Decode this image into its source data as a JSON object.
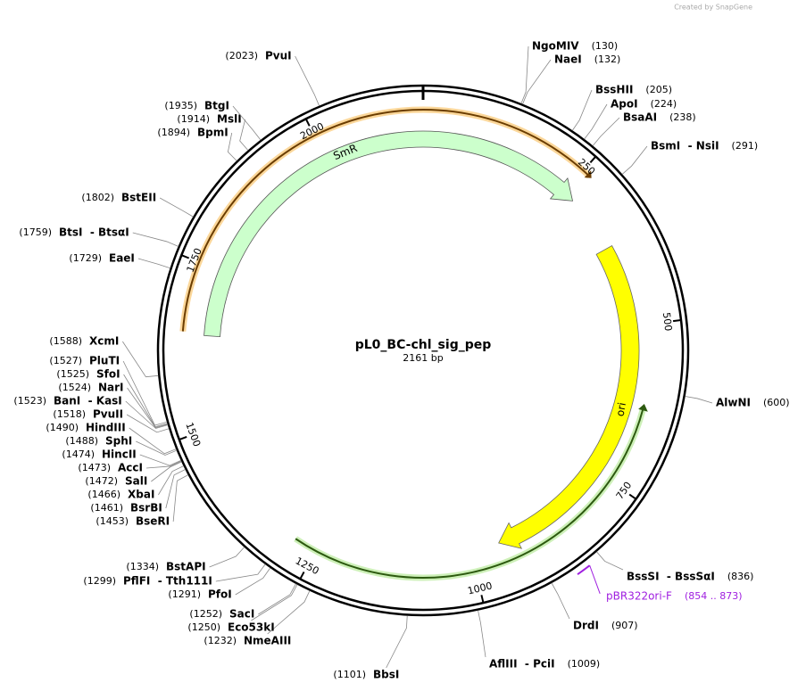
{
  "credit": "Created by SnapGene",
  "title": "pL0_BC-chl_sig_pep",
  "length": {
    "value": 2161,
    "label": "2161 bp"
  },
  "ticks": [
    250,
    500,
    750,
    1000,
    1250,
    1500,
    1750,
    2000
  ],
  "features": [
    {
      "name": "SmR"
    },
    {
      "name": "ori"
    }
  ],
  "primers": [
    {
      "name": "pBR322ori-F",
      "range": {
        "start": 854,
        "end": 873,
        "label": "(854 .. 873)"
      }
    }
  ],
  "enzymes": [
    {
      "name": "NgoMIV",
      "position": {
        "value": 130,
        "label": "(130)"
      }
    },
    {
      "name": "NaeI",
      "position": {
        "value": 132,
        "label": "(132)"
      }
    },
    {
      "name": "BssHII",
      "position": {
        "value": 205,
        "label": "(205)"
      }
    },
    {
      "name": "ApoI",
      "position": {
        "value": 224,
        "label": "(224)"
      }
    },
    {
      "name": "BsaAI",
      "position": {
        "value": 238,
        "label": "(238)"
      }
    },
    {
      "name": "BsmI  - NsiI",
      "position": {
        "value": 291,
        "label": "(291)"
      }
    },
    {
      "name": "AlwNI",
      "position": {
        "value": 600,
        "label": "(600)"
      }
    },
    {
      "name": "BssSI  - BssSαI",
      "position": {
        "value": 836,
        "label": "(836)"
      }
    },
    {
      "name": "DrdI",
      "position": {
        "value": 907,
        "label": "(907)"
      }
    },
    {
      "name": "AflIII  - PciI",
      "position": {
        "value": 1009,
        "label": "(1009)"
      }
    },
    {
      "name": "BbsI",
      "position": {
        "value": 1101,
        "label": "(1101)"
      }
    },
    {
      "name": "NmeAIII",
      "position": {
        "value": 1232,
        "label": "(1232)"
      }
    },
    {
      "name": "Eco53kI",
      "position": {
        "value": 1250,
        "label": "(1250)"
      }
    },
    {
      "name": "SacI",
      "position": {
        "value": 1252,
        "label": "(1252)"
      }
    },
    {
      "name": "PfoI",
      "position": {
        "value": 1291,
        "label": "(1291)"
      }
    },
    {
      "name": "PflFI  - Tth111I",
      "position": {
        "value": 1299,
        "label": "(1299)"
      }
    },
    {
      "name": "BstAPI",
      "position": {
        "value": 1334,
        "label": "(1334)"
      }
    },
    {
      "name": "BseRI",
      "position": {
        "value": 1453,
        "label": "(1453)"
      }
    },
    {
      "name": "BsrBI",
      "position": {
        "value": 1461,
        "label": "(1461)"
      }
    },
    {
      "name": "XbaI",
      "position": {
        "value": 1466,
        "label": "(1466)"
      }
    },
    {
      "name": "SalI",
      "position": {
        "value": 1472,
        "label": "(1472)"
      }
    },
    {
      "name": "AccI",
      "position": {
        "value": 1473,
        "label": "(1473)"
      }
    },
    {
      "name": "HincII",
      "position": {
        "value": 1474,
        "label": "(1474)"
      }
    },
    {
      "name": "SphI",
      "position": {
        "value": 1488,
        "label": "(1488)"
      }
    },
    {
      "name": "HindIII",
      "position": {
        "value": 1490,
        "label": "(1490)"
      }
    },
    {
      "name": "PvuII",
      "position": {
        "value": 1518,
        "label": "(1518)"
      }
    },
    {
      "name": "BanI  - KasI",
      "position": {
        "value": 1523,
        "label": "(1523)"
      }
    },
    {
      "name": "NarI",
      "position": {
        "value": 1524,
        "label": "(1524)"
      }
    },
    {
      "name": "SfoI",
      "position": {
        "value": 1525,
        "label": "(1525)"
      }
    },
    {
      "name": "PluTI",
      "position": {
        "value": 1527,
        "label": "(1527)"
      }
    },
    {
      "name": "XcmI",
      "position": {
        "value": 1588,
        "label": "(1588)"
      }
    },
    {
      "name": "EaeI",
      "position": {
        "value": 1729,
        "label": "(1729)"
      }
    },
    {
      "name": "BtsI  - BtsαI",
      "position": {
        "value": 1759,
        "label": "(1759)"
      }
    },
    {
      "name": "BstEII",
      "position": {
        "value": 1802,
        "label": "(1802)"
      }
    },
    {
      "name": "BpmI",
      "position": {
        "value": 1894,
        "label": "(1894)"
      }
    },
    {
      "name": "MslI",
      "position": {
        "value": 1914,
        "label": "(1914)"
      }
    },
    {
      "name": "BtgI",
      "position": {
        "value": 1935,
        "label": "(1935)"
      }
    },
    {
      "name": "PvuI",
      "position": {
        "value": 2023,
        "label": "(2023)"
      }
    }
  ]
}
